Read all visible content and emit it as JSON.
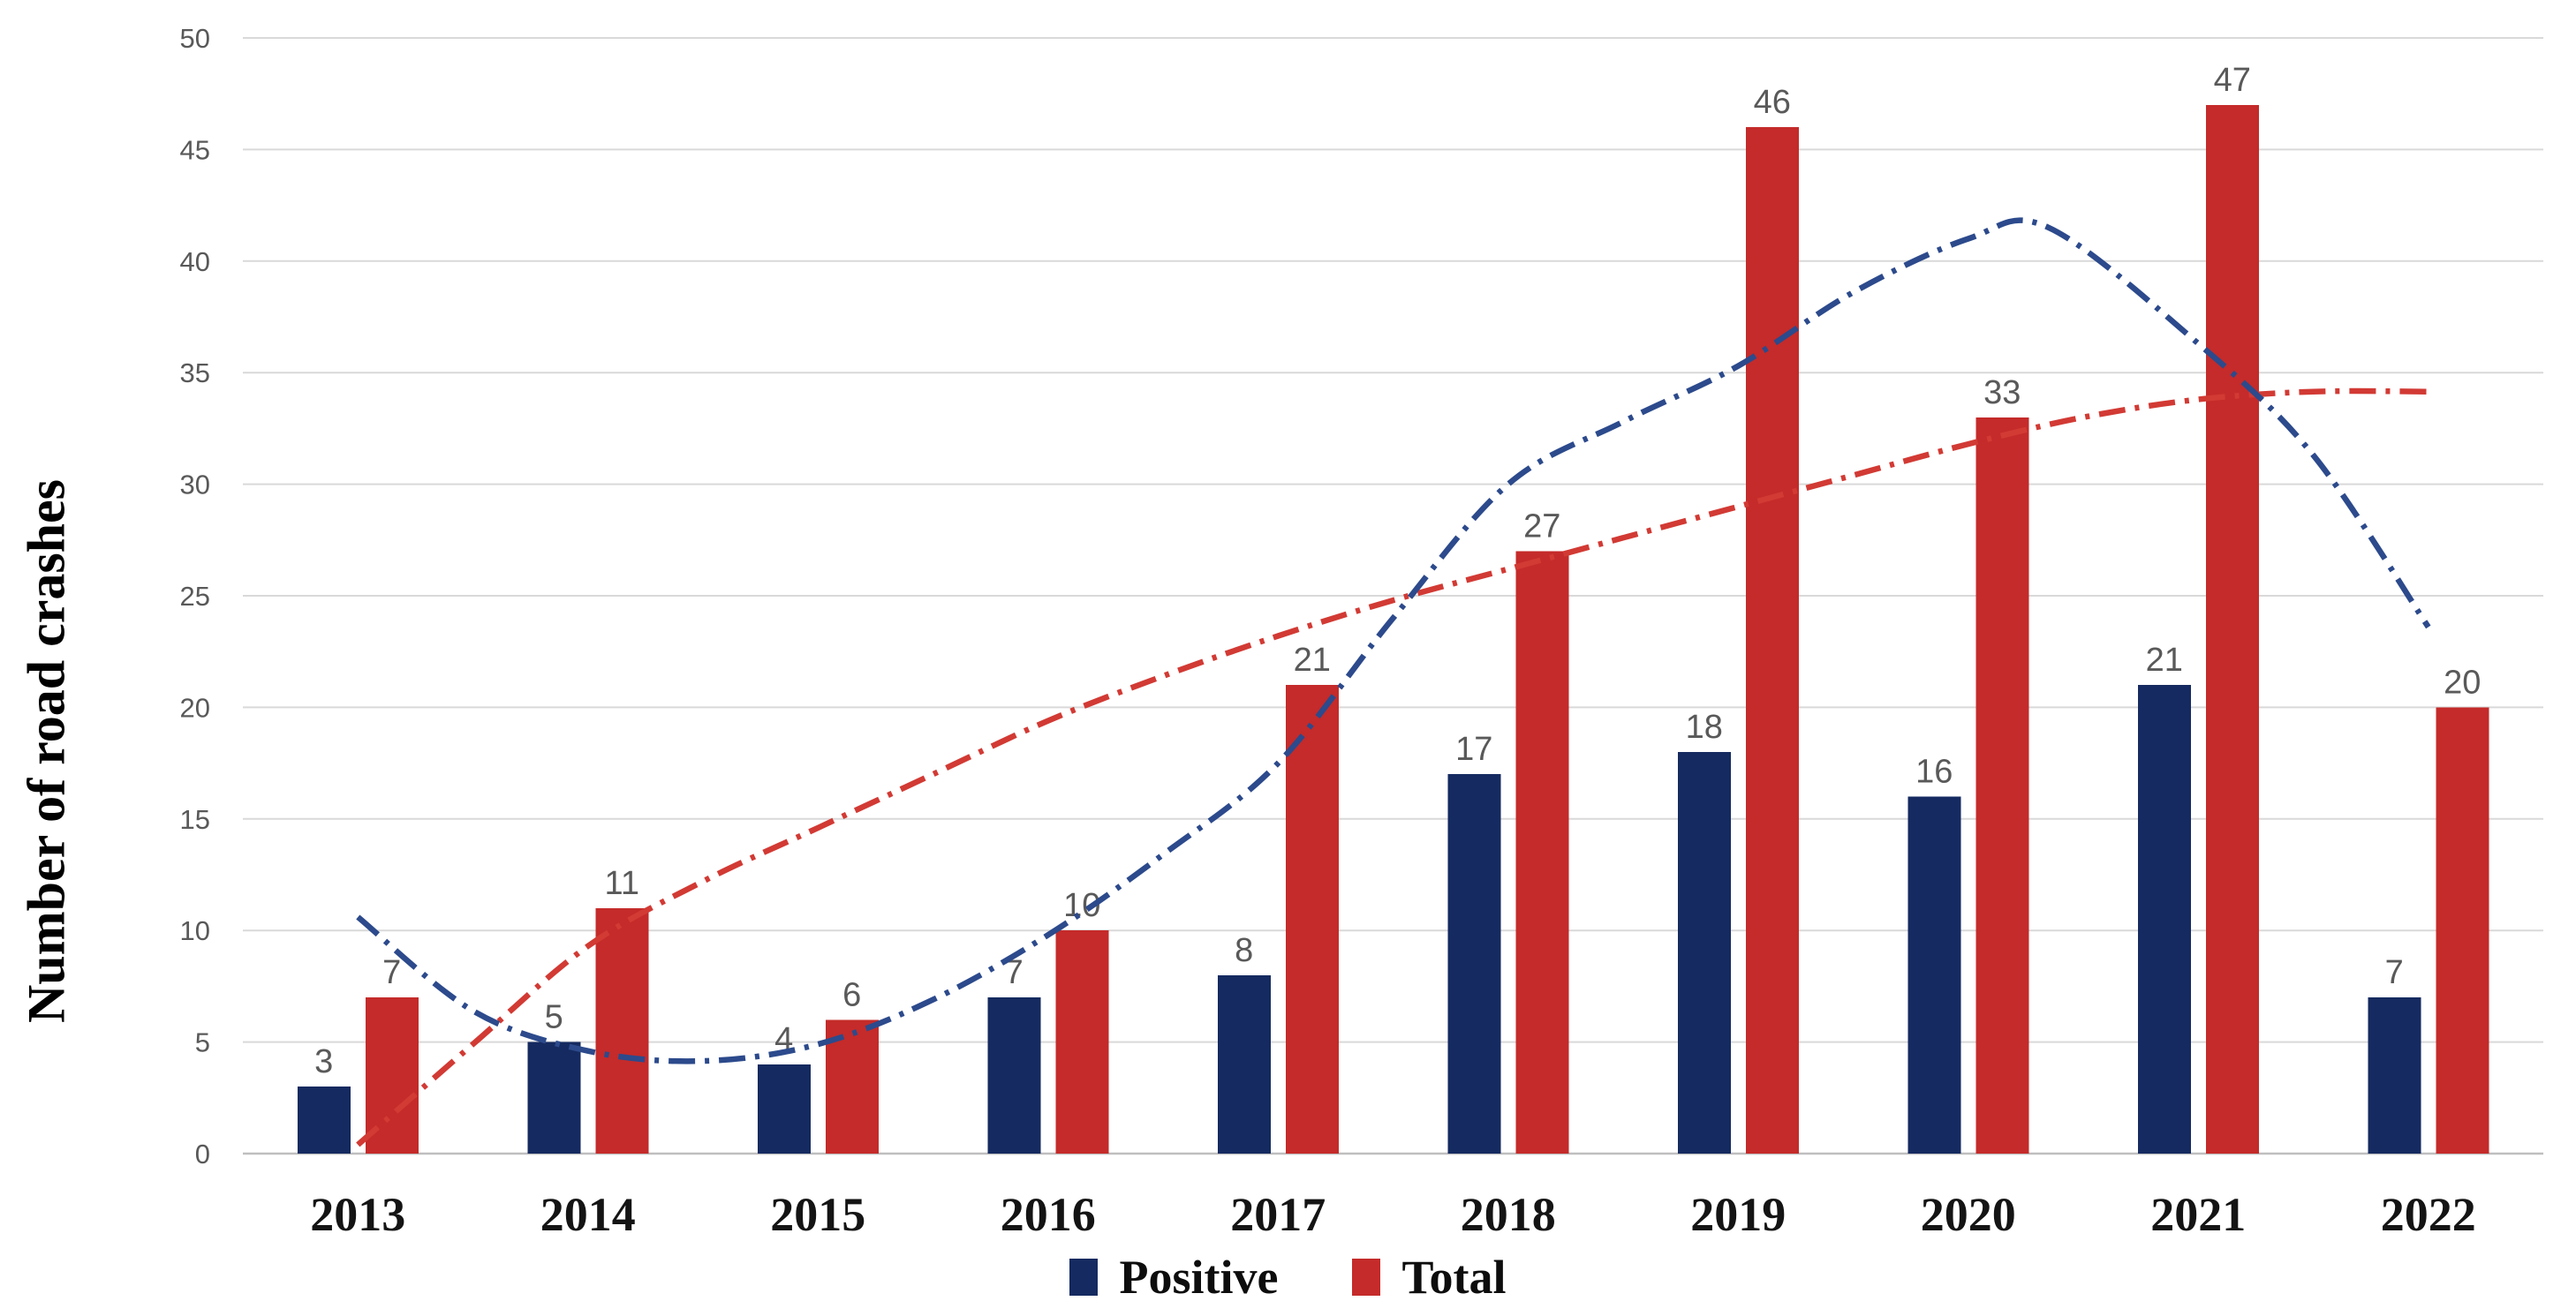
{
  "figure": {
    "y_axis_title": "Number of road crashes"
  },
  "chart_data": {
    "type": "bar",
    "title": "",
    "categories": [
      "2013",
      "2014",
      "2015",
      "2016",
      "2017",
      "2018",
      "2019",
      "2020",
      "2021",
      "2022"
    ],
    "series": [
      {
        "name": "Positive",
        "color": "#152A60",
        "values": [
          3,
          5,
          4,
          7,
          8,
          17,
          18,
          16,
          21,
          7
        ]
      },
      {
        "name": "Total",
        "color": "#C42B2A",
        "values": [
          7,
          11,
          6,
          10,
          21,
          27,
          46,
          33,
          47,
          20
        ]
      }
    ],
    "trendlines": [
      {
        "name": "Positive polynomial trend",
        "color": "#2C4A8C",
        "dash": "long-dash-dot",
        "points": [
          [
            1,
            10.6
          ],
          [
            1.5,
            6.4
          ],
          [
            2,
            4.6
          ],
          [
            2.5,
            4.15
          ],
          [
            3,
            4.9
          ],
          [
            3.5,
            6.9
          ],
          [
            4,
            9.8
          ],
          [
            4.5,
            13.4
          ],
          [
            5,
            17.5
          ],
          [
            5.5,
            24.0
          ],
          [
            6,
            30.0
          ],
          [
            6.5,
            32.8
          ],
          [
            7,
            35.3
          ],
          [
            7.5,
            38.6
          ],
          [
            8,
            41.0
          ],
          [
            8.35,
            41.5
          ],
          [
            9,
            36.3
          ],
          [
            9.5,
            31.3
          ],
          [
            10,
            23.6
          ]
        ]
      },
      {
        "name": "Total polynomial trend",
        "color": "#D23A34",
        "dash": "long-dash-dot",
        "points": [
          [
            1,
            0.4
          ],
          [
            1.5,
            4.9
          ],
          [
            2,
            9.3
          ],
          [
            2.5,
            12.2
          ],
          [
            3,
            14.6
          ],
          [
            3.5,
            17.0
          ],
          [
            4,
            19.4
          ],
          [
            4.5,
            21.4
          ],
          [
            5,
            23.2
          ],
          [
            5.5,
            24.8
          ],
          [
            6,
            26.2
          ],
          [
            6.5,
            27.6
          ],
          [
            7,
            29.0
          ],
          [
            7.5,
            30.4
          ],
          [
            8,
            31.8
          ],
          [
            8.5,
            33.0
          ],
          [
            9,
            33.8
          ],
          [
            9.5,
            34.15
          ],
          [
            10,
            34.15
          ]
        ]
      }
    ],
    "ylabel": "Number of road crashes",
    "xlabel": "",
    "ylim": [
      0,
      50
    ],
    "ytick_step": 5,
    "grid": true,
    "legend_position": "bottom",
    "style": {
      "grid_color": "#D9D9D9",
      "axis_line_color": "#BFBFBF",
      "tick_label_color": "#595959",
      "data_label_color": "#595959",
      "category_label_color": "#141414",
      "background": "#FFFFFF"
    }
  }
}
